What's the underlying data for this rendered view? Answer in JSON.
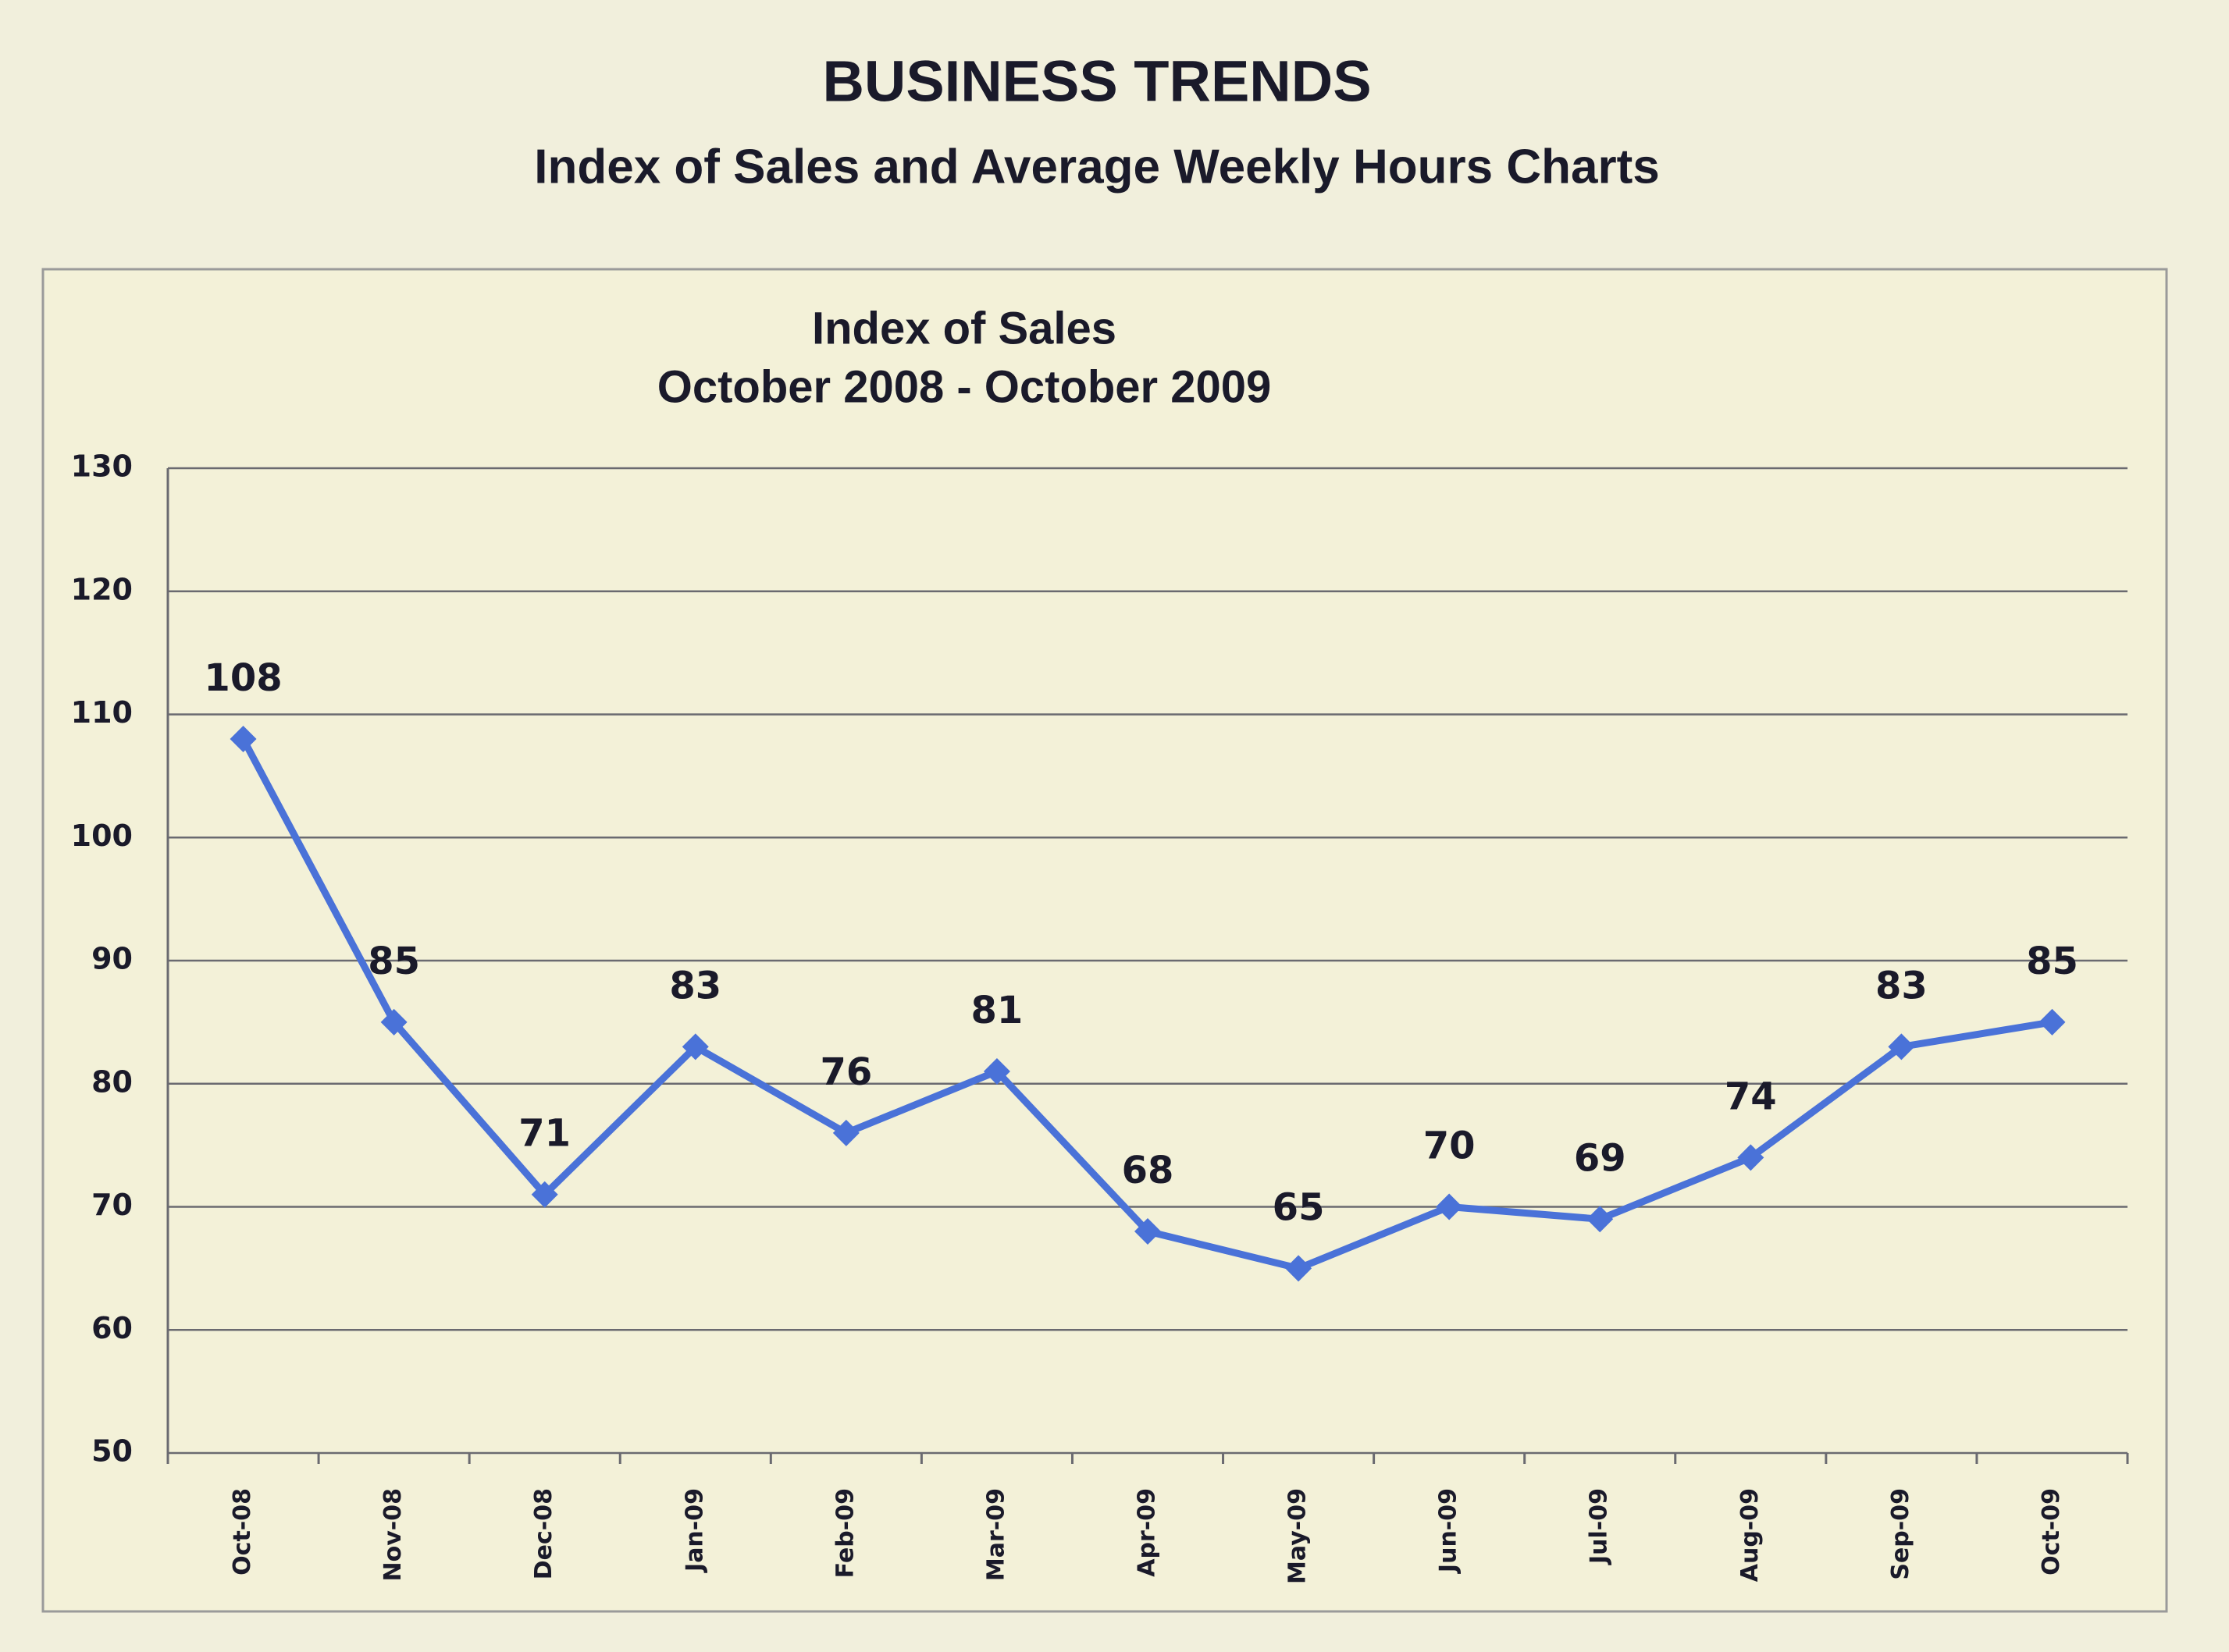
{
  "header": {
    "title": "BUSINESS TRENDS",
    "subtitle": "Index of Sales and Average Weekly Hours Charts"
  },
  "chart_data": {
    "type": "line",
    "title": "Index of Sales",
    "subtitle": "October 2008 - October 2009",
    "categories": [
      "Oct-08",
      "Nov-08",
      "Dec-08",
      "Jan-09",
      "Feb-09",
      "Mar-09",
      "Apr-09",
      "May-09",
      "Jun-09",
      "Jul-09",
      "Aug-09",
      "Sep-09",
      "Oct-09"
    ],
    "values": [
      108,
      85,
      71,
      83,
      76,
      81,
      68,
      65,
      70,
      69,
      74,
      83,
      85
    ],
    "color": "#4a72d8",
    "ylim": [
      50,
      130
    ],
    "yticks": [
      50,
      60,
      70,
      80,
      90,
      100,
      110,
      120,
      130
    ],
    "grid": true
  }
}
